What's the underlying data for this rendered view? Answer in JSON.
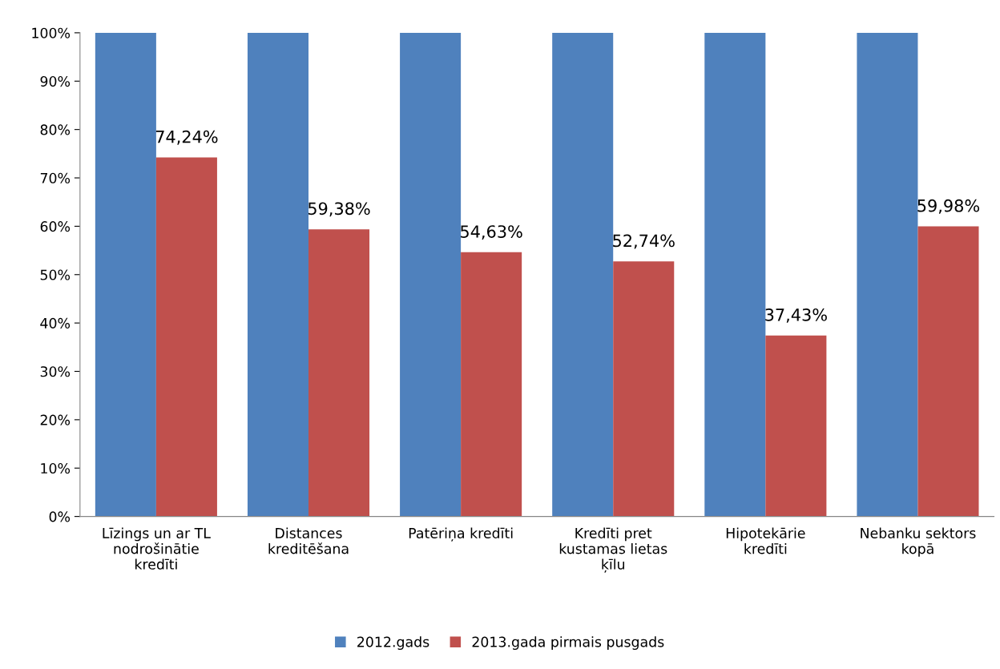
{
  "chart_data": {
    "type": "bar",
    "categories": [
      "Līzings un ar TL\nnodrošinātie\nkredīti",
      "Distances\nkreditēšana",
      "Patēriņa kredīti",
      "Kredīti pret\nkustamas lietas\nķīlu",
      "Hipotekārie\nkredīti",
      "Nebanku sektors\nkopā"
    ],
    "series": [
      {
        "name": "2012.gads",
        "color": "#4f81bd",
        "values": [
          100,
          100,
          100,
          100,
          100,
          100
        ]
      },
      {
        "name": "2013.gada pirmais pusgads",
        "color": "#c0504d",
        "values": [
          74.24,
          59.38,
          54.63,
          52.74,
          37.43,
          59.98
        ],
        "value_labels": [
          "74,24%",
          "59,38%",
          "54,63%",
          "52,74%",
          "37,43%",
          "59,98%"
        ]
      }
    ],
    "ylim": [
      0,
      100
    ],
    "yticks": [
      {
        "value": 0,
        "label": "0%"
      },
      {
        "value": 10,
        "label": "10%"
      },
      {
        "value": 20,
        "label": "20%"
      },
      {
        "value": 30,
        "label": "30%"
      },
      {
        "value": 40,
        "label": "40%"
      },
      {
        "value": 50,
        "label": "50%"
      },
      {
        "value": 60,
        "label": "60%"
      },
      {
        "value": 70,
        "label": "70%"
      },
      {
        "value": 80,
        "label": "80%"
      },
      {
        "value": 90,
        "label": "90%"
      },
      {
        "value": 100,
        "label": "100%"
      }
    ],
    "legend": "bottom",
    "grid": false
  }
}
